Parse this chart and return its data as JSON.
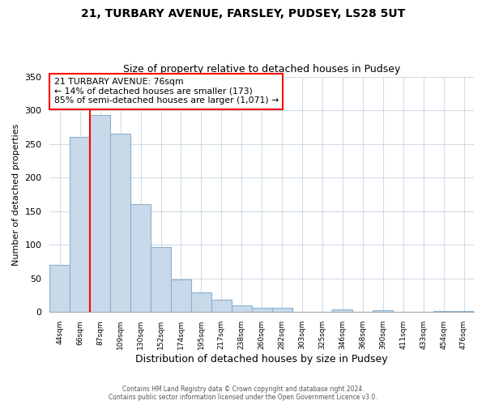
{
  "title1": "21, TURBARY AVENUE, FARSLEY, PUDSEY, LS28 5UT",
  "title2": "Size of property relative to detached houses in Pudsey",
  "xlabel": "Distribution of detached houses by size in Pudsey",
  "ylabel": "Number of detached properties",
  "categories": [
    "44sqm",
    "66sqm",
    "87sqm",
    "109sqm",
    "130sqm",
    "152sqm",
    "174sqm",
    "195sqm",
    "217sqm",
    "238sqm",
    "260sqm",
    "282sqm",
    "303sqm",
    "325sqm",
    "346sqm",
    "368sqm",
    "390sqm",
    "411sqm",
    "433sqm",
    "454sqm",
    "476sqm"
  ],
  "values": [
    70,
    260,
    293,
    265,
    160,
    97,
    49,
    29,
    19,
    10,
    6,
    6,
    0,
    0,
    4,
    0,
    3,
    0,
    0,
    2,
    2
  ],
  "bar_color": "#c8d9ea",
  "bar_edge_color": "#8ab0cc",
  "annotation_box_text1": "21 TURBARY AVENUE: 76sqm",
  "annotation_text2": "← 14% of detached houses are smaller (173)",
  "annotation_text3": "85% of semi-detached houses are larger (1,071) →",
  "annotation_box_color": "white",
  "annotation_box_edge_color": "red",
  "ylim": [
    0,
    350
  ],
  "yticks": [
    0,
    50,
    100,
    150,
    200,
    250,
    300,
    350
  ],
  "footer1": "Contains HM Land Registry data © Crown copyright and database right 2024.",
  "footer2": "Contains public sector information licensed under the Open Government Licence v3.0.",
  "background_color": "#ffffff",
  "grid_color": "#d0dce8"
}
